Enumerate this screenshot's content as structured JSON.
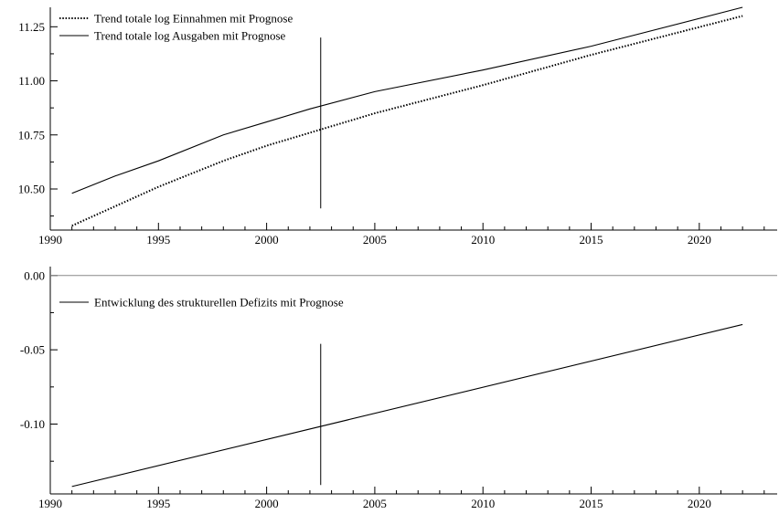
{
  "chart_data": [
    {
      "type": "line",
      "xlim": [
        1990,
        2023.6
      ],
      "ylim": [
        10.31,
        11.34
      ],
      "x_ticks": [
        1990,
        1995,
        2000,
        2005,
        2010,
        2015,
        2020
      ],
      "y_ticks": [
        10.5,
        10.75,
        11.0,
        11.25
      ],
      "x_tick_labels": [
        "1990",
        "1995",
        "2000",
        "2005",
        "2010",
        "2015",
        "2020"
      ],
      "y_tick_labels": [
        "10.50",
        "10.75",
        "11.00",
        "11.25"
      ],
      "legend_position": "top-left",
      "grid": false,
      "series": [
        {
          "name": "Trend totale log Einnahmen mit Prognose",
          "style": "dotted",
          "x": [
            1991,
            1993,
            1995,
            1998,
            2000,
            2002,
            2005,
            2010,
            2015,
            2022
          ],
          "y": [
            10.33,
            10.42,
            10.51,
            10.63,
            10.7,
            10.76,
            10.85,
            10.98,
            11.12,
            11.3
          ]
        },
        {
          "name": "Trend totale log Ausgaben mit Prognose",
          "style": "solid",
          "x": [
            1991,
            1993,
            1995,
            1998,
            2000,
            2002,
            2005,
            2010,
            2015,
            2022
          ],
          "y": [
            10.48,
            10.56,
            10.63,
            10.75,
            10.81,
            10.87,
            10.95,
            11.05,
            11.16,
            11.34
          ]
        }
      ],
      "vertical_marker": {
        "x": 2002.5,
        "y_from": 10.41,
        "y_to": 11.2
      }
    },
    {
      "type": "line",
      "xlim": [
        1990,
        2023.6
      ],
      "ylim": [
        -0.147,
        0.006
      ],
      "x_ticks": [
        1990,
        1995,
        2000,
        2005,
        2010,
        2015,
        2020
      ],
      "y_ticks": [
        0.0,
        -0.05,
        -0.1
      ],
      "x_tick_labels": [
        "1990",
        "1995",
        "2000",
        "2005",
        "2010",
        "2015",
        "2020"
      ],
      "y_tick_labels": [
        "0.00",
        "-0.05",
        "-0.10"
      ],
      "legend_position": "top-left",
      "grid": false,
      "reference_line_y": 0.0,
      "series": [
        {
          "name": "Entwicklung des strukturellen Defizits mit Prognose",
          "style": "solid",
          "x": [
            1991,
            2022
          ],
          "y": [
            -0.142,
            -0.033
          ]
        }
      ],
      "vertical_marker": {
        "x": 2002.5,
        "y_from": -0.141,
        "y_to": -0.046
      }
    }
  ]
}
